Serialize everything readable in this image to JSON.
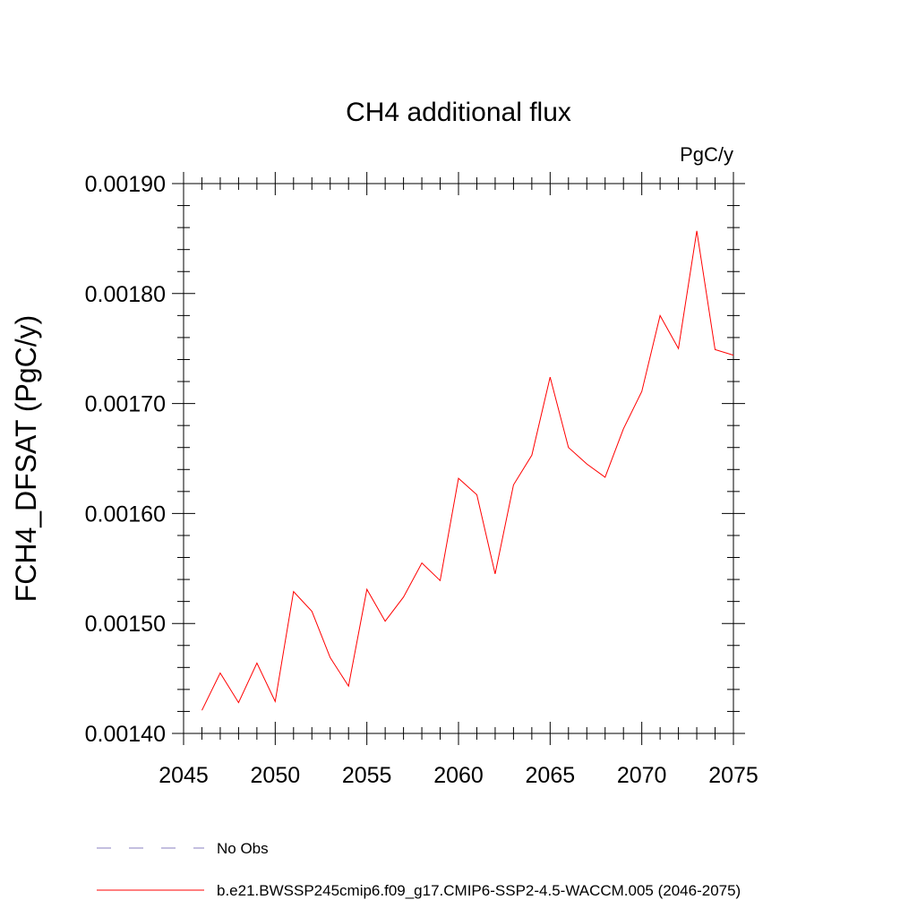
{
  "chart_data": {
    "type": "line",
    "title": "CH4 additional flux",
    "units": "PgC/y",
    "xlabel": "",
    "ylabel": "FCH4_DFSAT  (PgC/y)",
    "xlim": [
      2045,
      2075
    ],
    "ylim": [
      0.0014,
      0.0019
    ],
    "x_ticks": [
      2045,
      2050,
      2055,
      2060,
      2065,
      2070,
      2075
    ],
    "x_tick_labels": [
      "2045",
      "2050",
      "2055",
      "2060",
      "2065",
      "2070",
      "2075"
    ],
    "y_ticks": [
      0.0014,
      0.0015,
      0.0016,
      0.0017,
      0.0018,
      0.0019
    ],
    "y_tick_labels": [
      "0.00140",
      "0.00150",
      "0.00160",
      "0.00170",
      "0.00180",
      "0.00190"
    ],
    "grid": false,
    "legend_position": "bottom",
    "series": [
      {
        "name": "b.e21.BWSSP245cmip6.f09_g17.CMIP6-SSP2-4.5-WACCM.005 (2046-2075)",
        "color": "#ff0000",
        "style": "solid",
        "x": [
          2046,
          2047,
          2048,
          2049,
          2050,
          2051,
          2052,
          2053,
          2054,
          2055,
          2056,
          2057,
          2058,
          2059,
          2060,
          2061,
          2062,
          2063,
          2064,
          2065,
          2066,
          2067,
          2068,
          2069,
          2070,
          2071,
          2072,
          2073,
          2074,
          2075
        ],
        "y": [
          0.001421,
          0.001455,
          0.001428,
          0.001464,
          0.001429,
          0.001529,
          0.001511,
          0.001469,
          0.001443,
          0.001531,
          0.001502,
          0.001524,
          0.001555,
          0.001539,
          0.001632,
          0.001617,
          0.001545,
          0.001626,
          0.001653,
          0.001724,
          0.00166,
          0.001645,
          0.001633,
          0.001677,
          0.001711,
          0.00178,
          0.00175,
          0.001857,
          0.001749,
          0.001744
        ]
      },
      {
        "name": "No Obs",
        "color": "#8a7fbf",
        "style": "dashed",
        "x": [],
        "y": []
      }
    ],
    "legend": [
      {
        "label": "No Obs",
        "color": "#8a7fbf",
        "style": "dashed"
      },
      {
        "label": "b.e21.BWSSP245cmip6.f09_g17.CMIP6-SSP2-4.5-WACCM.005 (2046-2075)",
        "color": "#ff0000",
        "style": "solid"
      }
    ]
  }
}
